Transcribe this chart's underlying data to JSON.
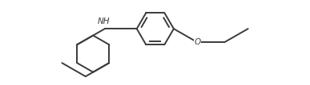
{
  "bg_color": "#ffffff",
  "line_color": "#3a3a3a",
  "line_width": 1.4,
  "font_size": 7.5,
  "font_color": "#3a3a3a",
  "figsize": [
    3.87,
    1.07
  ],
  "dpi": 100
}
